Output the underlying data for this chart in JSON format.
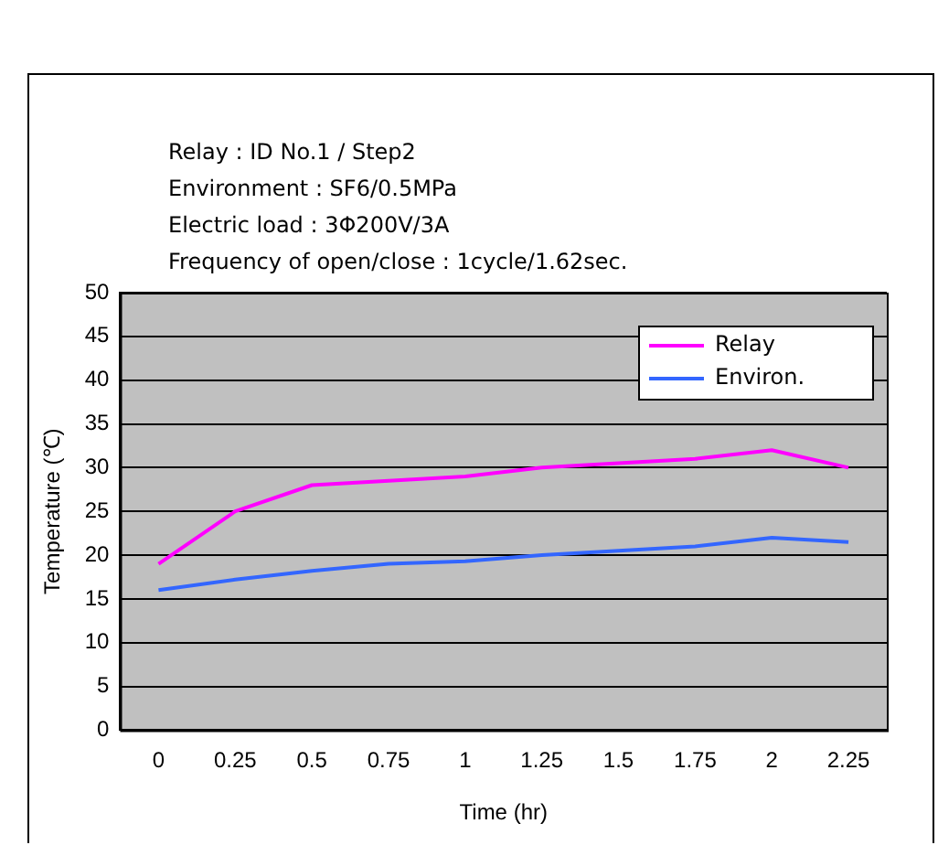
{
  "chart_data": {
    "type": "line",
    "annotations": [
      "Relay : ID No.1 / Step2",
      "Environment : SF6/0.5MPa",
      "Electric load : 3Φ200V/3A",
      "Frequency of open/close : 1cycle/1.62sec."
    ],
    "xlabel": "Time (hr)",
    "ylabel": "Temperature (℃)",
    "categories": [
      "0",
      "0.25",
      "0.5",
      "0.75",
      "1",
      "1.25",
      "1.5",
      "1.75",
      "2",
      "2.25"
    ],
    "ylim": [
      0,
      50
    ],
    "yticks": [
      0,
      5,
      10,
      15,
      20,
      25,
      30,
      35,
      40,
      45,
      50
    ],
    "grid": "y",
    "legend": "top right",
    "marker": "none",
    "line_style": "solid",
    "series": [
      {
        "name": "Relay",
        "color": "#ff00ff",
        "values": [
          19,
          25,
          28,
          28.5,
          29,
          30,
          30.5,
          31,
          32,
          30
        ]
      },
      {
        "name": "Environ.",
        "color": "#3366ff",
        "values": [
          16,
          17.2,
          18.2,
          19,
          19.3,
          20,
          20.5,
          21,
          22,
          21.5
        ]
      }
    ]
  }
}
